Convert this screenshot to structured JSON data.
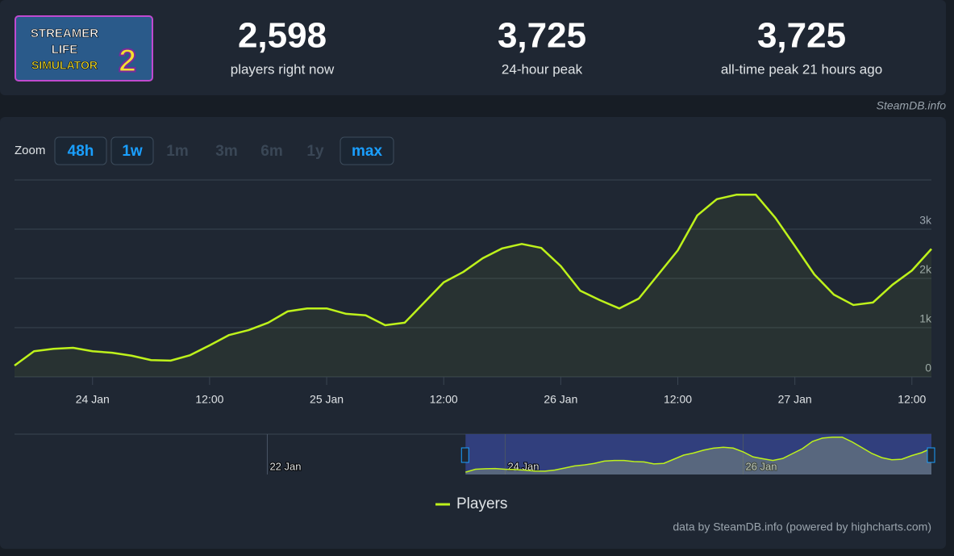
{
  "header": {
    "logo": [
      "STREAMER",
      "LIFE",
      "SIMULATOR",
      "2"
    ],
    "stats": [
      {
        "value": "2,598",
        "label": "players right now"
      },
      {
        "value": "3,725",
        "label": "24-hour peak"
      },
      {
        "value": "3,725",
        "label": "all-time peak 21 hours ago"
      }
    ],
    "source": "SteamDB.info"
  },
  "zoom": {
    "label": "Zoom",
    "buttons": [
      "48h",
      "1w",
      "1m",
      "3m",
      "6m",
      "1y",
      "max"
    ],
    "active": [
      "48h",
      "1w",
      "max"
    ]
  },
  "chart_data": {
    "type": "line",
    "x": [
      "23 Jan 16:00",
      "23 Jan 18:00",
      "23 Jan 20:00",
      "23 Jan 22:00",
      "24 Jan 00:00",
      "24 Jan 02:00",
      "24 Jan 04:00",
      "24 Jan 06:00",
      "24 Jan 08:00",
      "24 Jan 10:00",
      "24 Jan 12:00",
      "24 Jan 14:00",
      "24 Jan 16:00",
      "24 Jan 18:00",
      "24 Jan 20:00",
      "24 Jan 22:00",
      "25 Jan 00:00",
      "25 Jan 02:00",
      "25 Jan 04:00",
      "25 Jan 06:00",
      "25 Jan 08:00",
      "25 Jan 10:00",
      "25 Jan 12:00",
      "25 Jan 14:00",
      "25 Jan 16:00",
      "25 Jan 18:00",
      "25 Jan 20:00",
      "25 Jan 22:00",
      "26 Jan 00:00",
      "26 Jan 02:00",
      "26 Jan 04:00",
      "26 Jan 06:00",
      "26 Jan 08:00",
      "26 Jan 10:00",
      "26 Jan 12:00",
      "26 Jan 14:00",
      "26 Jan 16:00",
      "26 Jan 18:00",
      "26 Jan 20:00",
      "26 Jan 22:00",
      "27 Jan 00:00",
      "27 Jan 02:00",
      "27 Jan 04:00",
      "27 Jan 06:00",
      "27 Jan 08:00",
      "27 Jan 10:00",
      "27 Jan 12:00",
      "27 Jan 14:00"
    ],
    "series": [
      {
        "name": "Players",
        "color": "#bef21b",
        "values": [
          230,
          520,
          570,
          590,
          520,
          490,
          430,
          340,
          330,
          440,
          640,
          850,
          950,
          1100,
          1330,
          1390,
          1390,
          1280,
          1250,
          1050,
          1100,
          1510,
          1920,
          2130,
          2410,
          2610,
          2700,
          2620,
          2250,
          1750,
          1560,
          1390,
          1590,
          2080,
          2570,
          3280,
          3610,
          3700,
          3700,
          3230,
          2660,
          2080,
          1670,
          1460,
          1510,
          1870,
          2160,
          2598
        ]
      }
    ],
    "xlim": [
      "23 Jan 16:00",
      "27 Jan 14:00"
    ],
    "xticks": [
      {
        "value": "24 Jan 00:00",
        "label": "24 Jan"
      },
      {
        "value": "24 Jan 12:00",
        "label": "12:00"
      },
      {
        "value": "25 Jan 00:00",
        "label": "25 Jan"
      },
      {
        "value": "25 Jan 12:00",
        "label": "12:00"
      },
      {
        "value": "26 Jan 00:00",
        "label": "26 Jan"
      },
      {
        "value": "26 Jan 12:00",
        "label": "12:00"
      },
      {
        "value": "27 Jan 00:00",
        "label": "27 Jan"
      },
      {
        "value": "27 Jan 12:00",
        "label": "12:00"
      }
    ],
    "ylim": [
      0,
      4000
    ],
    "yticks": [
      0,
      {
        "value": 1000,
        "label": "1k"
      },
      {
        "value": 2000,
        "label": "2k"
      },
      {
        "value": 3000,
        "label": "3k"
      }
    ],
    "grid": true,
    "navigator": {
      "xlim": [
        "19 Jan 21:00",
        "27 Jan 14:00"
      ],
      "xticks": [
        {
          "value": "22 Jan 00:00",
          "label": "22 Jan"
        },
        {
          "value": "24 Jan 00:00",
          "label": "24 Jan"
        },
        {
          "value": "26 Jan 00:00",
          "label": "26 Jan"
        }
      ]
    },
    "legend": "bottom",
    "credits": "data by SteamDB.info (powered by highcharts.com)"
  }
}
